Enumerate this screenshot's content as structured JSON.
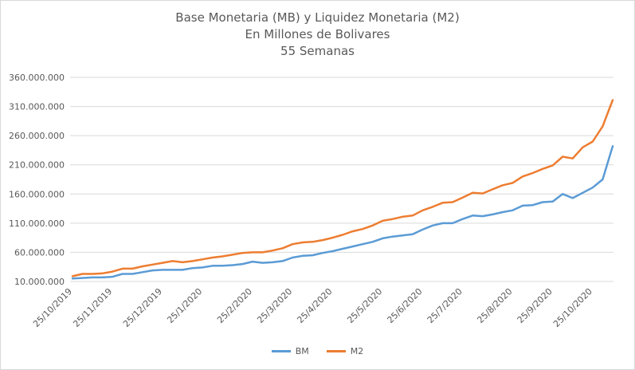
{
  "chart_data": {
    "type": "line",
    "title_lines": [
      "Base Monetaria (MB) y Liquidez Monetaria (M2)",
      "En Millones de Bolivares",
      "55 Semanas"
    ],
    "ylim": [
      10000000,
      360000000
    ],
    "yticks": [
      {
        "value": 10000000,
        "label": "10.000.000"
      },
      {
        "value": 60000000,
        "label": "60.000.000"
      },
      {
        "value": 110000000,
        "label": "110.000.000"
      },
      {
        "value": 160000000,
        "label": "160.000.000"
      },
      {
        "value": 210000000,
        "label": "210.000.000"
      },
      {
        "value": 260000000,
        "label": "260.000.000"
      },
      {
        "value": 310000000,
        "label": "310.000.000"
      },
      {
        "value": 360000000,
        "label": "360.000.000"
      }
    ],
    "xticks": [
      {
        "index": 0,
        "label": "25/10/2019"
      },
      {
        "index": 4,
        "label": "25/11/2019"
      },
      {
        "index": 9,
        "label": "25/12/2019"
      },
      {
        "index": 13,
        "label": "25/1/2020"
      },
      {
        "index": 18,
        "label": "25/2/2020"
      },
      {
        "index": 22,
        "label": "25/3/2020"
      },
      {
        "index": 26,
        "label": "25/4/2020"
      },
      {
        "index": 31,
        "label": "25/5/2020"
      },
      {
        "index": 35,
        "label": "25/6/2020"
      },
      {
        "index": 39,
        "label": "25/7/2020"
      },
      {
        "index": 44,
        "label": "25/8/2020"
      },
      {
        "index": 48,
        "label": "25/9/2020"
      },
      {
        "index": 52,
        "label": "25/10/2020"
      }
    ],
    "grid": true,
    "legend_position": "bottom",
    "series": [
      {
        "name": "BM",
        "color": "#5b9bd5",
        "values": [
          15000000,
          16000000,
          17000000,
          17000000,
          18000000,
          23000000,
          23000000,
          26000000,
          29000000,
          30000000,
          30000000,
          30000000,
          33000000,
          34000000,
          37000000,
          37000000,
          38000000,
          40000000,
          44000000,
          42000000,
          43000000,
          45000000,
          51000000,
          54000000,
          55000000,
          59000000,
          62000000,
          66000000,
          70000000,
          74000000,
          78000000,
          84000000,
          87000000,
          89000000,
          91000000,
          99000000,
          106000000,
          110000000,
          110000000,
          117000000,
          123000000,
          122000000,
          125000000,
          129000000,
          132000000,
          140000000,
          141000000,
          146000000,
          147000000,
          160000000,
          153000000,
          162000000,
          171000000,
          185000000,
          242000000
        ]
      },
      {
        "name": "M2",
        "color": "#ed7d31",
        "values": [
          19000000,
          23000000,
          23000000,
          24000000,
          27000000,
          32000000,
          32000000,
          36000000,
          39000000,
          42000000,
          45000000,
          43000000,
          45000000,
          48000000,
          51000000,
          53000000,
          56000000,
          59000000,
          60000000,
          60000000,
          63000000,
          67000000,
          74000000,
          77000000,
          78000000,
          81000000,
          85000000,
          90000000,
          96000000,
          100000000,
          106000000,
          114000000,
          117000000,
          121000000,
          123000000,
          132000000,
          138000000,
          145000000,
          146000000,
          154000000,
          162000000,
          161000000,
          168000000,
          175000000,
          179000000,
          190000000,
          196000000,
          203000000,
          209000000,
          224000000,
          221000000,
          240000000,
          250000000,
          276000000,
          321000000
        ]
      }
    ]
  }
}
